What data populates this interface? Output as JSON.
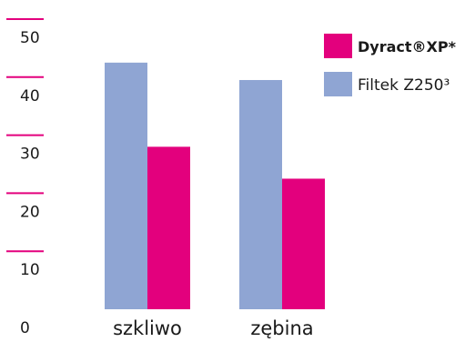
{
  "chart_data": {
    "type": "bar",
    "categories": [
      "szkliwo",
      "zębina"
    ],
    "series": [
      {
        "name": "Filtek Z250³",
        "values": [
          42.5,
          39.5
        ],
        "color": "#8fa5d3"
      },
      {
        "name": "Dyract®XP*",
        "values": [
          28.0,
          22.5
        ],
        "color": "#e3007d"
      }
    ],
    "ylim": [
      0,
      50
    ],
    "yticks": [
      "0",
      "10",
      "20",
      "30",
      "40",
      "50"
    ],
    "grid": false,
    "tick_mark_color": "#e3007d",
    "legend_placement": "top-right",
    "legend_order": [
      1,
      0
    ]
  }
}
